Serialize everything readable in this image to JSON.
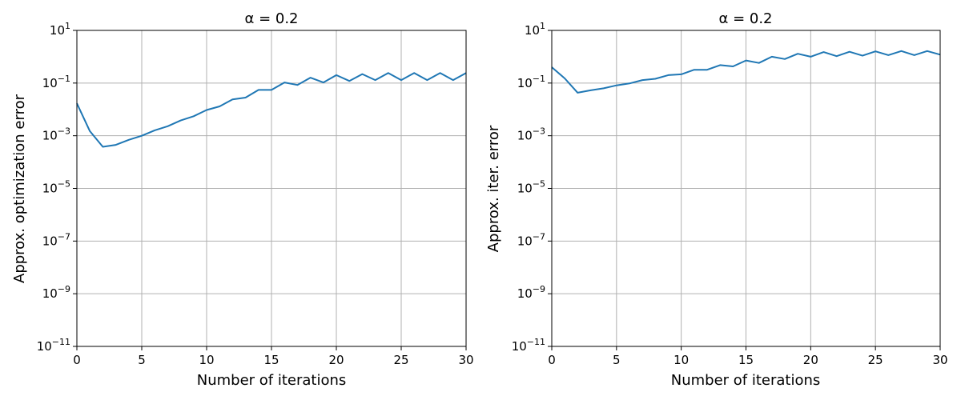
{
  "chart_data": [
    {
      "type": "line",
      "title": "α = 0.2",
      "xlabel": "Number of iterations",
      "ylabel": "Approx. optimization error",
      "xlim": [
        0,
        30
      ],
      "ylim": [
        1e-11,
        10
      ],
      "yscale": "log",
      "grid": true,
      "x_ticks": [
        0,
        5,
        10,
        15,
        20,
        25,
        30
      ],
      "y_tick_exponents": [
        -11,
        -9,
        -7,
        -5,
        -3,
        -1,
        1
      ],
      "series_color": "#1f77b4",
      "series": [
        {
          "x": [
            0,
            1,
            2,
            3,
            4,
            5,
            6,
            7,
            8,
            9,
            10,
            11,
            12,
            13,
            14,
            15,
            16,
            17,
            18,
            19,
            20,
            21,
            22,
            23,
            24,
            25,
            26,
            27,
            28,
            29,
            30
          ],
          "y": [
            0.017,
            0.0015,
            0.00038,
            0.00045,
            0.0007,
            0.001,
            0.0016,
            0.0023,
            0.0038,
            0.0055,
            0.0095,
            0.013,
            0.024,
            0.028,
            0.055,
            0.055,
            0.105,
            0.085,
            0.16,
            0.105,
            0.2,
            0.12,
            0.22,
            0.13,
            0.24,
            0.13,
            0.24,
            0.13,
            0.24,
            0.13,
            0.24
          ]
        }
      ]
    },
    {
      "type": "line",
      "title": "α = 0.2",
      "xlabel": "Number of iterations",
      "ylabel": "Approx. iter. error",
      "xlim": [
        0,
        30
      ],
      "ylim": [
        1e-11,
        10
      ],
      "yscale": "log",
      "grid": true,
      "x_ticks": [
        0,
        5,
        10,
        15,
        20,
        25,
        30
      ],
      "y_tick_exponents": [
        -11,
        -9,
        -7,
        -5,
        -3,
        -1,
        1
      ],
      "series_color": "#1f77b4",
      "series": [
        {
          "x": [
            0,
            1,
            2,
            3,
            4,
            5,
            6,
            7,
            8,
            9,
            10,
            11,
            12,
            13,
            14,
            15,
            16,
            17,
            18,
            19,
            20,
            21,
            22,
            23,
            24,
            25,
            26,
            27,
            28,
            29,
            30
          ],
          "y": [
            0.4,
            0.15,
            0.043,
            0.053,
            0.063,
            0.082,
            0.097,
            0.13,
            0.145,
            0.2,
            0.215,
            0.32,
            0.32,
            0.48,
            0.43,
            0.72,
            0.58,
            1.0,
            0.82,
            1.3,
            1.0,
            1.5,
            1.05,
            1.55,
            1.1,
            1.6,
            1.15,
            1.65,
            1.15,
            1.65,
            1.2
          ]
        }
      ]
    }
  ]
}
